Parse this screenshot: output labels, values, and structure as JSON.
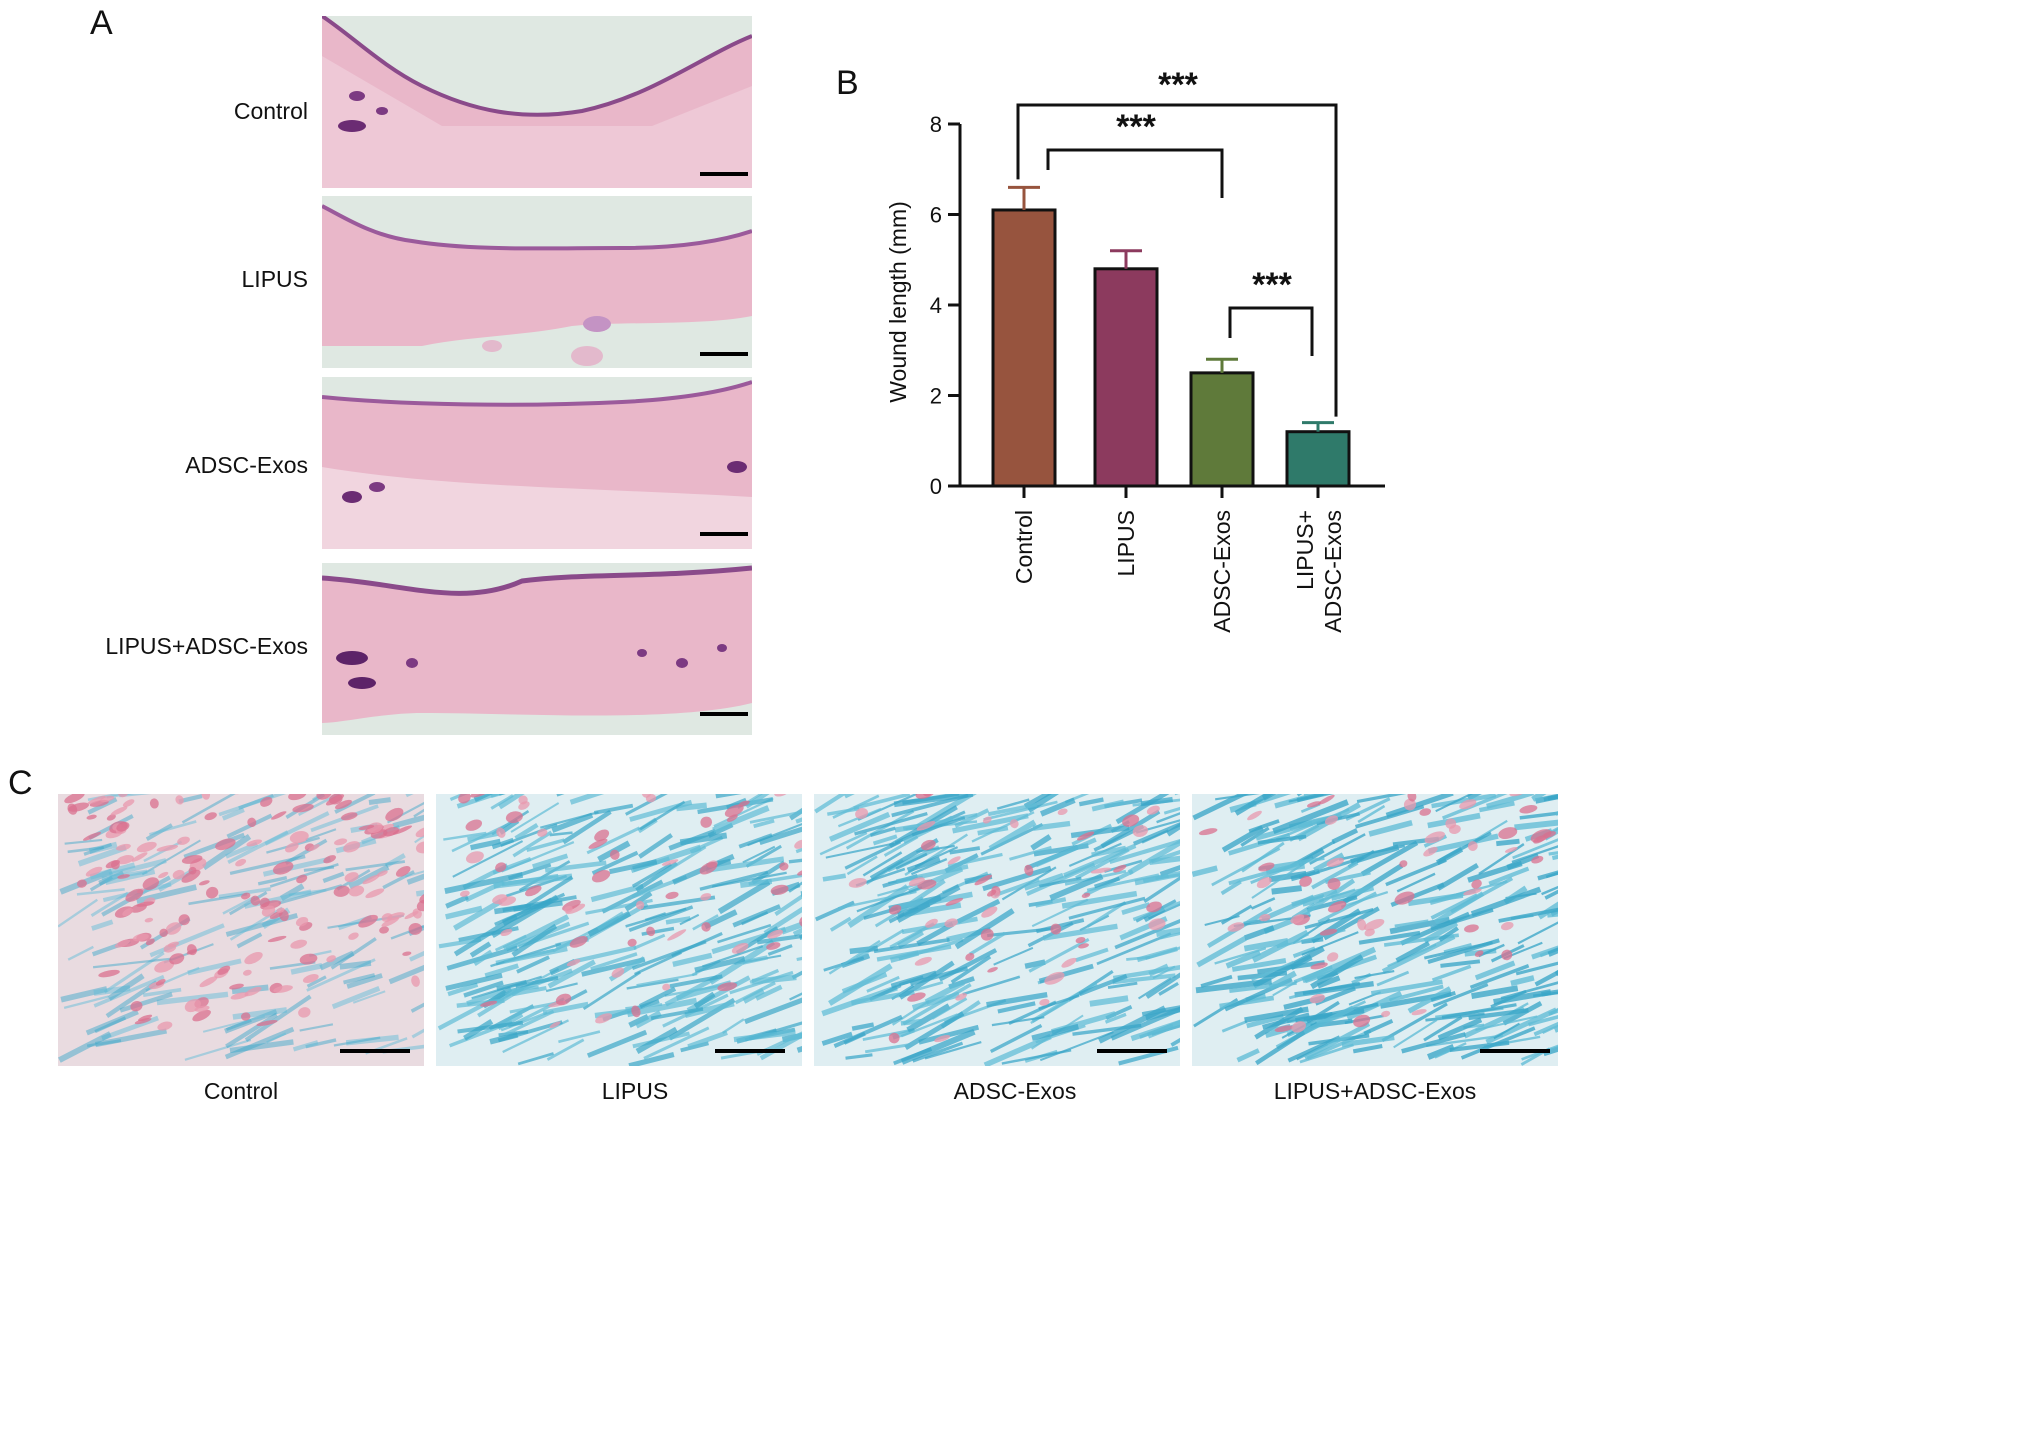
{
  "panels": {
    "a_letter": "A",
    "b_letter": "B",
    "c_letter": "C"
  },
  "panel_a": {
    "rows": [
      {
        "label": "Control"
      },
      {
        "label": "LIPUS"
      },
      {
        "label": "ADSC-Exos"
      },
      {
        "label": "LIPUS+ADSC-Exos"
      }
    ]
  },
  "panel_c": {
    "labels": [
      "Control",
      "LIPUS",
      "ADSC-Exos",
      "LIPUS+ADSC-Exos"
    ],
    "blue_intensity": [
      0.25,
      0.7,
      0.75,
      0.85
    ]
  },
  "chart_data": {
    "type": "bar",
    "ylabel": "Wound length (mm)",
    "ylim": [
      0,
      8
    ],
    "yticks": [
      0,
      2,
      4,
      6,
      8
    ],
    "categories": [
      "Control",
      "LIPUS",
      "ADSC-Exos",
      "LIPUS+\nADSC-Exos"
    ],
    "values": [
      6.1,
      4.8,
      2.5,
      1.2
    ],
    "errors": [
      0.5,
      0.4,
      0.3,
      0.2
    ],
    "colors": [
      "#97543e",
      "#8c3a5e",
      "#5f7a3a",
      "#2f7a6a"
    ],
    "significance": [
      {
        "from": 0,
        "to": 3,
        "label": "***"
      },
      {
        "from": 0,
        "to": 2,
        "label": "***"
      },
      {
        "from": 2,
        "to": 3,
        "label": "***"
      }
    ]
  }
}
